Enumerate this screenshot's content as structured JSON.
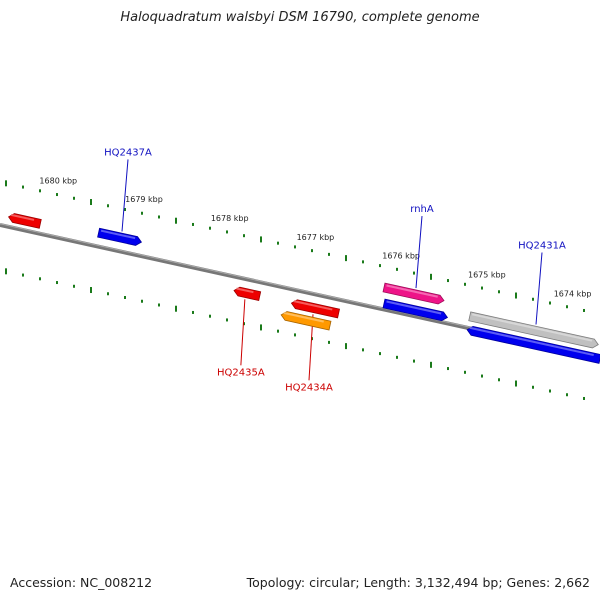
{
  "title": "Haloquadratum walsbyi DSM 16790, complete genome",
  "footer": {
    "accession": "Accession: NC_008212",
    "summary": "Topology: circular; Length: 3,132,494 bp; Genes: 2,662"
  },
  "colors": {
    "backbone": "#777777",
    "ticks": "#1a7a1a",
    "forward_label": "#1010c0",
    "reverse_label": "#cc0000"
  },
  "chart_data": {
    "type": "genome-map",
    "view_range_kbp": [
      1673.6,
      1680.6
    ],
    "tick_labels": [
      "1680 kbp",
      "1679 kbp",
      "1678 kbp",
      "1677 kbp",
      "1676 kbp",
      "1675 kbp",
      "1674 kbp"
    ],
    "genes": [
      {
        "name": "",
        "strand": "-",
        "start_kbp": 1680.5,
        "end_kbp": 1680.13,
        "color": "#ee0000"
      },
      {
        "name": "HQ2437A",
        "strand": "+",
        "start_kbp": 1679.45,
        "end_kbp": 1678.95,
        "color": "#0000ee"
      },
      {
        "name": "HQ2435A",
        "strand": "-",
        "start_kbp": 1677.87,
        "end_kbp": 1677.57,
        "color": "#ee0000"
      },
      {
        "name": "HQ2434A",
        "strand": "-",
        "start_kbp": 1677.2,
        "end_kbp": 1676.65,
        "color": "#ee0000"
      },
      {
        "name": "",
        "strand": "-",
        "start_kbp": 1677.32,
        "end_kbp": 1676.75,
        "color": "#ff9900"
      },
      {
        "name": "rnhA",
        "strand": "+",
        "start_kbp": 1676.12,
        "end_kbp": 1675.42,
        "color": "#ee1488"
      },
      {
        "name": "",
        "strand": "+",
        "start_kbp": 1676.12,
        "end_kbp": 1675.38,
        "color": "#0000ee"
      },
      {
        "name": "HQ2431A",
        "strand": "+",
        "start_kbp": 1675.12,
        "end_kbp": 1673.62,
        "color": "#c0c0c0"
      },
      {
        "name": "",
        "strand": "-",
        "start_kbp": 1675.15,
        "end_kbp": 1673.6,
        "color": "#0000ee"
      }
    ]
  }
}
